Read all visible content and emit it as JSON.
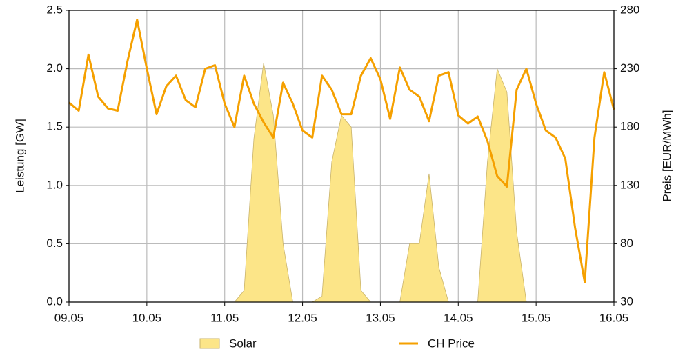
{
  "chart_data": {
    "type": "line",
    "ylabel": "Leistung [GW]",
    "y2label": "Preis [EUR/MWh]",
    "xlim": [
      0,
      7
    ],
    "xticks": [
      {
        "value": 0,
        "label": "09.05"
      },
      {
        "value": 1,
        "label": "10.05"
      },
      {
        "value": 2,
        "label": "11.05"
      },
      {
        "value": 3,
        "label": "12.05"
      },
      {
        "value": 4,
        "label": "13.05"
      },
      {
        "value": 5,
        "label": "14.05"
      },
      {
        "value": 6,
        "label": "15.05"
      },
      {
        "value": 7,
        "label": "16.05"
      }
    ],
    "ylim": [
      0,
      2.5
    ],
    "yticks": [
      {
        "value": 0,
        "label": "0.0"
      },
      {
        "value": 0.5,
        "label": "0.5"
      },
      {
        "value": 1,
        "label": "1.0"
      },
      {
        "value": 1.5,
        "label": "1.5"
      },
      {
        "value": 2,
        "label": "2.0"
      },
      {
        "value": 2.5,
        "label": "2.5"
      }
    ],
    "y2lim": [
      30,
      280
    ],
    "y2ticks": [
      30,
      80,
      130,
      180,
      230,
      280
    ],
    "grid": true,
    "legend": "bottom",
    "x": [
      0,
      0.125,
      0.25,
      0.375,
      0.5,
      0.625,
      0.75,
      0.875,
      1,
      1.125,
      1.25,
      1.375,
      1.5,
      1.625,
      1.75,
      1.875,
      2,
      2.125,
      2.25,
      2.375,
      2.5,
      2.625,
      2.75,
      2.875,
      3,
      3.125,
      3.25,
      3.375,
      3.5,
      3.625,
      3.75,
      3.875,
      4,
      4.125,
      4.25,
      4.375,
      4.5,
      4.625,
      4.75,
      4.875,
      5,
      5.125,
      5.25,
      5.375,
      5.5,
      5.625,
      5.75,
      5.875,
      6,
      6.125,
      6.25,
      6.375,
      6.5,
      6.625,
      6.75,
      6.875,
      7
    ],
    "series": [
      {
        "name": "Solar",
        "kind": "area",
        "color": "#fce588",
        "values": [
          0,
          0,
          0,
          0,
          0,
          0,
          0,
          0,
          0,
          0,
          0,
          0,
          0,
          0,
          0,
          0,
          0,
          0,
          0.1,
          1.4,
          2.05,
          1.6,
          0.5,
          0,
          0,
          0,
          0.05,
          1.2,
          1.6,
          1.5,
          0.1,
          0,
          0,
          0,
          0,
          0.5,
          0.5,
          1.1,
          0.3,
          0,
          0,
          0,
          0,
          1.2,
          2.0,
          1.8,
          0.6,
          0,
          0,
          0,
          0,
          0,
          0,
          0,
          0,
          0,
          0
        ]
      },
      {
        "name": "CH Price",
        "kind": "line",
        "axis": "y2",
        "color": "#f5a000",
        "values": [
          201,
          194,
          242,
          206,
          196,
          194,
          236,
          272,
          230,
          191,
          215,
          224,
          203,
          197,
          230,
          233,
          200,
          180,
          224,
          200,
          184,
          171,
          218,
          200,
          177,
          171,
          224,
          212,
          191,
          191,
          224,
          239,
          221,
          187,
          231,
          212,
          206,
          185,
          224,
          227,
          190,
          183,
          189,
          168,
          138,
          129,
          212,
          230,
          200,
          177,
          171,
          153,
          94,
          47,
          171,
          227,
          195
        ]
      }
    ]
  }
}
